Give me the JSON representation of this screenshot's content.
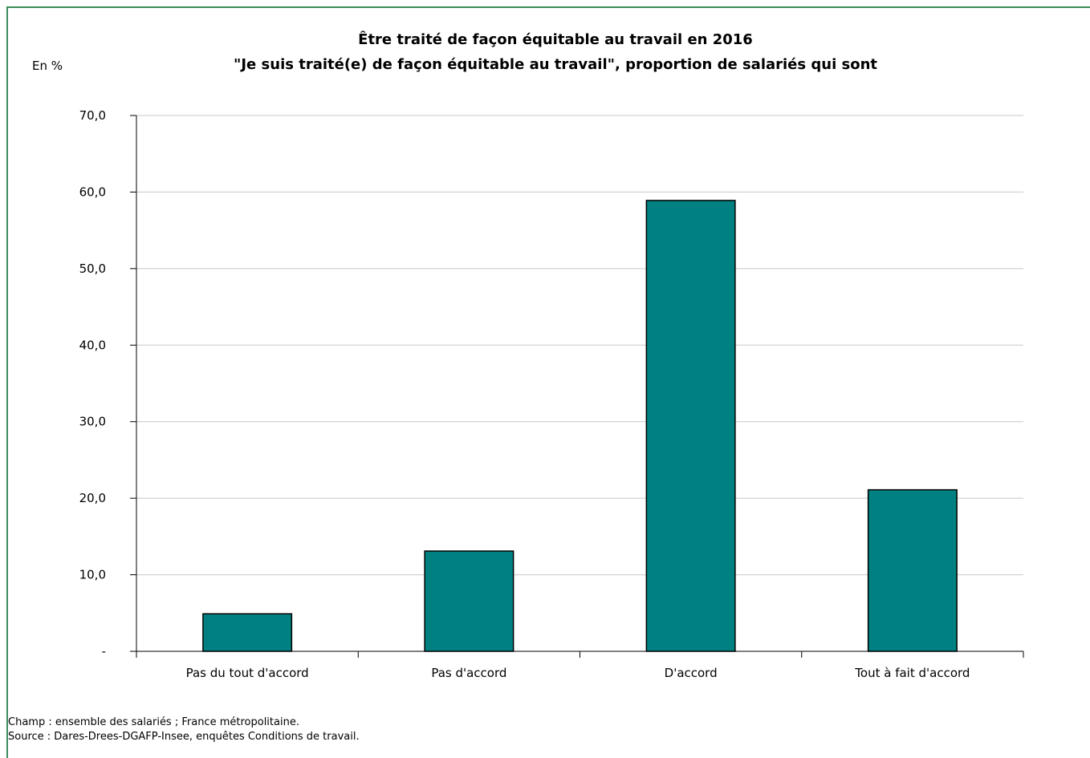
{
  "chart_data": {
    "type": "bar",
    "title": "Être traité de façon équitable au travail en 2016",
    "subtitle": "\"Je suis traité(e) de façon équitable au travail\", proportion de salariés qui sont",
    "ylabel": "En %",
    "xlabel": "",
    "categories": [
      "Pas du tout d'accord",
      "Pas d'accord",
      "D'accord",
      "Tout à fait d'accord"
    ],
    "values": [
      4.9,
      13.1,
      58.9,
      21.1
    ],
    "ylim": [
      0,
      70
    ],
    "yticks": [
      0,
      10,
      20,
      30,
      40,
      50,
      60,
      70
    ],
    "ytick_labels": [
      "-",
      "10,0",
      "20,0",
      "30,0",
      "40,0",
      "50,0",
      "60,0",
      "70,0"
    ],
    "grid": true,
    "legend": "none",
    "colors": {
      "bar": "#008080",
      "bar_border": "#000000",
      "grid": "#c8c8c8",
      "frame": "#3c8c5a"
    }
  },
  "notes": {
    "champ": "Champ : ensemble des salariés ; France métropolitaine.",
    "source": "Source : Dares-Drees-DGAFP-Insee, enquêtes Conditions de travail."
  }
}
